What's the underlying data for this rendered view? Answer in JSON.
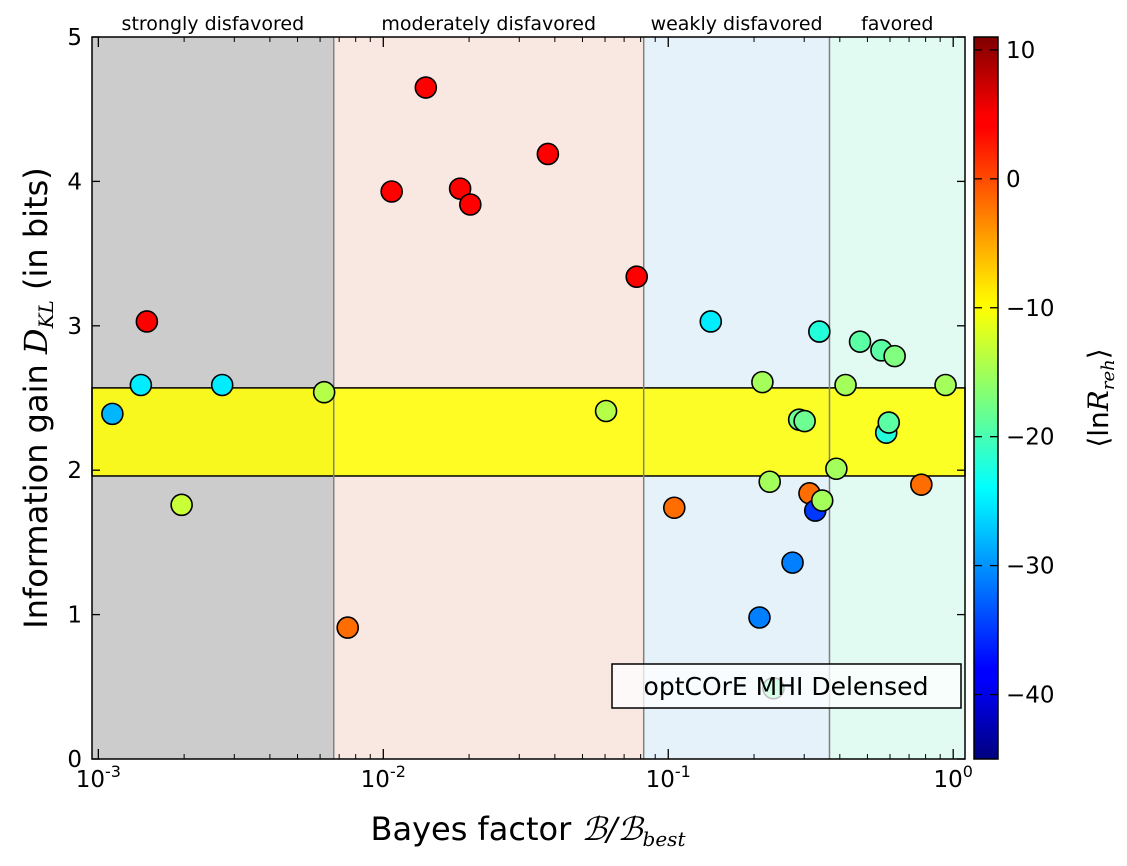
{
  "chart_data": {
    "type": "scatter",
    "xlabel_prefix": "Bayes factor ",
    "xlabel_math": "ℬ/ℬ",
    "xlabel_sub": "best",
    "ylabel_prefix": "Information gain ",
    "ylabel_math": "D",
    "ylabel_sub": "KL",
    "ylabel_suffix": " (in bits)",
    "xscale": "log",
    "xlim": [
      0.00095,
      1.1
    ],
    "ylim": [
      0,
      5
    ],
    "x_ticks": [
      {
        "value": 0.001,
        "base": "10",
        "exp": "-3"
      },
      {
        "value": 0.01,
        "base": "10",
        "exp": "-2"
      },
      {
        "value": 0.1,
        "base": "10",
        "exp": "-1"
      },
      {
        "value": 1,
        "base": "10",
        "exp": "0"
      }
    ],
    "y_ticks": [
      "0",
      "1",
      "2",
      "3",
      "4",
      "5"
    ],
    "regions": [
      {
        "label": "strongly disfavored",
        "x0": 0.00095,
        "x1": 0.0067,
        "color": "#cccccc"
      },
      {
        "label": "moderately disfavored",
        "x0": 0.0067,
        "x1": 0.082,
        "color": "#f8e8e1"
      },
      {
        "label": "weakly disfavored",
        "x0": 0.082,
        "x1": 0.368,
        "color": "#e6f2fa"
      },
      {
        "label": "favored",
        "x0": 0.368,
        "x1": 1.1,
        "color": "#e1fbf2"
      }
    ],
    "band": {
      "y0": 1.96,
      "y1": 2.57,
      "color": "#ffff00"
    },
    "legend_box_text": "optCOrE MHI Delensed",
    "colorbar": {
      "label_prefix": "⟨ln",
      "label_math": "R",
      "label_sub": "reh",
      "label_suffix": "⟩",
      "min": -45,
      "max": 11,
      "ticks": [
        "10",
        "0",
        "−10",
        "−20",
        "−30",
        "−40"
      ],
      "tick_values": [
        10,
        0,
        -10,
        -20,
        -30,
        -40
      ],
      "colormap": "jet"
    },
    "points": [
      {
        "x": 0.00112,
        "y": 2.39,
        "c": -28
      },
      {
        "x": 0.00141,
        "y": 2.59,
        "c": -25
      },
      {
        "x": 0.00148,
        "y": 3.03,
        "c": 4
      },
      {
        "x": 0.00196,
        "y": 1.76,
        "c": -13
      },
      {
        "x": 0.00272,
        "y": 2.59,
        "c": -25
      },
      {
        "x": 0.0062,
        "y": 2.54,
        "c": -14
      },
      {
        "x": 0.0075,
        "y": 0.91,
        "c": -2
      },
      {
        "x": 0.0107,
        "y": 3.93,
        "c": 4
      },
      {
        "x": 0.0141,
        "y": 4.65,
        "c": 4
      },
      {
        "x": 0.0186,
        "y": 3.95,
        "c": 4
      },
      {
        "x": 0.0202,
        "y": 3.84,
        "c": 4
      },
      {
        "x": 0.0378,
        "y": 4.19,
        "c": 4
      },
      {
        "x": 0.0605,
        "y": 2.41,
        "c": -14
      },
      {
        "x": 0.0775,
        "y": 3.34,
        "c": 4
      },
      {
        "x": 0.105,
        "y": 1.74,
        "c": -2
      },
      {
        "x": 0.141,
        "y": 3.03,
        "c": -25
      },
      {
        "x": 0.209,
        "y": 0.98,
        "c": -31
      },
      {
        "x": 0.214,
        "y": 2.61,
        "c": -15
      },
      {
        "x": 0.227,
        "y": 1.92,
        "c": -15
      },
      {
        "x": 0.234,
        "y": 0.49,
        "c": -19
      },
      {
        "x": 0.273,
        "y": 1.36,
        "c": -31
      },
      {
        "x": 0.288,
        "y": 2.35,
        "c": -18
      },
      {
        "x": 0.301,
        "y": 2.34,
        "c": -18
      },
      {
        "x": 0.313,
        "y": 1.84,
        "c": -2
      },
      {
        "x": 0.328,
        "y": 1.72,
        "c": -35
      },
      {
        "x": 0.339,
        "y": 2.96,
        "c": -22
      },
      {
        "x": 0.347,
        "y": 1.79,
        "c": -15
      },
      {
        "x": 0.389,
        "y": 2.01,
        "c": -15
      },
      {
        "x": 0.419,
        "y": 2.59,
        "c": -15
      },
      {
        "x": 0.471,
        "y": 2.89,
        "c": -19
      },
      {
        "x": 0.56,
        "y": 2.83,
        "c": -19
      },
      {
        "x": 0.582,
        "y": 2.26,
        "c": -22
      },
      {
        "x": 0.594,
        "y": 2.33,
        "c": -19
      },
      {
        "x": 0.623,
        "y": 2.79,
        "c": -17
      },
      {
        "x": 0.773,
        "y": 1.9,
        "c": -2
      },
      {
        "x": 0.94,
        "y": 2.59,
        "c": -15
      }
    ]
  }
}
